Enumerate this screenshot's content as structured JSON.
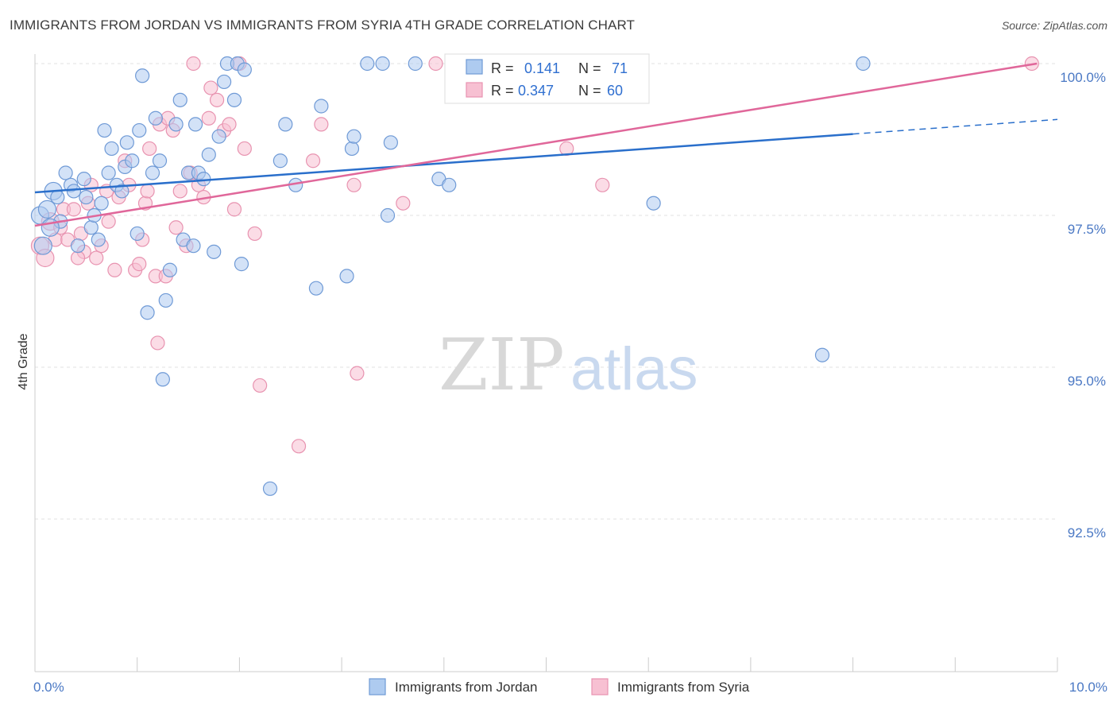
{
  "title": "IMMIGRANTS FROM JORDAN VS IMMIGRANTS FROM SYRIA 4TH GRADE CORRELATION CHART",
  "source": "Source: ZipAtlas.com",
  "watermark": {
    "zip": "ZIP",
    "atlas": "atlas"
  },
  "colors": {
    "jordan_fill": "#aecbf0",
    "jordan_stroke": "#6f9ad6",
    "jordan_line": "#2a6fcb",
    "syria_fill": "#f7c0d2",
    "syria_stroke": "#e893b0",
    "syria_line": "#e0679a"
  },
  "legend": {
    "jordan": {
      "r_label": "R =",
      "r_value": "0.141",
      "n_label": "N =",
      "n_value": "71"
    },
    "syria": {
      "r_label": "R =",
      "r_value": "0.347",
      "n_label": "N =",
      "n_value": "60"
    }
  },
  "chart_data": {
    "type": "scatter",
    "title": "IMMIGRANTS FROM JORDAN VS IMMIGRANTS FROM SYRIA 4TH GRADE CORRELATION CHART",
    "xlabel": "",
    "ylabel": "4th Grade",
    "xlim": [
      0,
      10
    ],
    "ylim": [
      90.0,
      100.3
    ],
    "x_tick_labels": [
      "0.0%",
      "10.0%"
    ],
    "y_ticks": [
      92.5,
      95.0,
      97.5,
      100.0
    ],
    "y_tick_labels": [
      "92.5%",
      "95.0%",
      "97.5%",
      "100.0%"
    ],
    "grid": true,
    "legend_position": "bottom",
    "series": [
      {
        "name": "Immigrants from Jordan",
        "trend": {
          "x0": 0.0,
          "y0": 97.88,
          "x1": 8.0,
          "y1": 98.84,
          "dash_x1": 10.0,
          "dash_y1": 99.08
        },
        "points": [
          [
            0.05,
            97.5
          ],
          [
            0.12,
            97.6
          ],
          [
            0.18,
            97.9
          ],
          [
            0.25,
            97.4
          ],
          [
            0.3,
            98.2
          ],
          [
            0.35,
            98.0
          ],
          [
            0.38,
            97.9
          ],
          [
            0.42,
            97.0
          ],
          [
            0.48,
            98.1
          ],
          [
            0.5,
            97.8
          ],
          [
            0.55,
            97.3
          ],
          [
            0.58,
            97.5
          ],
          [
            0.62,
            97.1
          ],
          [
            0.68,
            98.9
          ],
          [
            0.72,
            98.2
          ],
          [
            0.75,
            98.6
          ],
          [
            0.8,
            98.0
          ],
          [
            0.85,
            97.9
          ],
          [
            0.88,
            98.3
          ],
          [
            0.9,
            98.7
          ],
          [
            0.95,
            98.4
          ],
          [
            1.0,
            97.2
          ],
          [
            1.02,
            98.9
          ],
          [
            1.05,
            99.8
          ],
          [
            1.1,
            95.9
          ],
          [
            1.15,
            98.2
          ],
          [
            1.18,
            99.1
          ],
          [
            1.22,
            98.4
          ],
          [
            1.25,
            94.8
          ],
          [
            1.28,
            96.1
          ],
          [
            1.32,
            96.6
          ],
          [
            1.38,
            99.0
          ],
          [
            1.42,
            99.4
          ],
          [
            1.45,
            97.1
          ],
          [
            1.5,
            98.2
          ],
          [
            1.55,
            97.0
          ],
          [
            1.57,
            99.0
          ],
          [
            1.6,
            98.2
          ],
          [
            1.7,
            98.5
          ],
          [
            1.75,
            96.9
          ],
          [
            1.8,
            98.8
          ],
          [
            1.85,
            99.7
          ],
          [
            1.88,
            100.0
          ],
          [
            1.95,
            99.4
          ],
          [
            1.98,
            100.0
          ],
          [
            2.02,
            96.7
          ],
          [
            2.05,
            99.9
          ],
          [
            2.3,
            93.0
          ],
          [
            2.4,
            98.4
          ],
          [
            2.45,
            99.0
          ],
          [
            2.55,
            98.0
          ],
          [
            2.75,
            96.3
          ],
          [
            2.8,
            99.3
          ],
          [
            3.05,
            96.5
          ],
          [
            3.1,
            98.6
          ],
          [
            3.12,
            98.8
          ],
          [
            3.25,
            100.0
          ],
          [
            3.4,
            100.0
          ],
          [
            3.45,
            97.5
          ],
          [
            3.48,
            98.7
          ],
          [
            3.72,
            100.0
          ],
          [
            3.95,
            98.1
          ],
          [
            4.05,
            98.0
          ],
          [
            6.05,
            97.7
          ],
          [
            7.7,
            95.2
          ],
          [
            8.1,
            100.0
          ],
          [
            0.08,
            97.0
          ],
          [
            0.15,
            97.3
          ],
          [
            0.22,
            97.8
          ],
          [
            0.65,
            97.7
          ],
          [
            1.65,
            98.1
          ]
        ],
        "sizes_note": "larger markers near x=0"
      },
      {
        "name": "Immigrants from Syria",
        "trend": {
          "x0": 0.0,
          "y0": 97.33,
          "x1": 9.8,
          "y1": 100.0
        },
        "points": [
          [
            0.05,
            97.0
          ],
          [
            0.1,
            96.8
          ],
          [
            0.15,
            97.4
          ],
          [
            0.2,
            97.1
          ],
          [
            0.28,
            97.6
          ],
          [
            0.32,
            97.1
          ],
          [
            0.38,
            97.6
          ],
          [
            0.45,
            97.2
          ],
          [
            0.48,
            96.9
          ],
          [
            0.52,
            97.7
          ],
          [
            0.55,
            98.0
          ],
          [
            0.6,
            96.8
          ],
          [
            0.65,
            97.0
          ],
          [
            0.7,
            97.9
          ],
          [
            0.72,
            97.4
          ],
          [
            0.78,
            96.6
          ],
          [
            0.82,
            97.8
          ],
          [
            0.88,
            98.4
          ],
          [
            0.92,
            98.0
          ],
          [
            0.98,
            96.6
          ],
          [
            1.02,
            96.7
          ],
          [
            1.05,
            97.1
          ],
          [
            1.08,
            97.7
          ],
          [
            1.12,
            98.6
          ],
          [
            1.18,
            96.5
          ],
          [
            1.2,
            95.4
          ],
          [
            1.22,
            99.0
          ],
          [
            1.28,
            96.5
          ],
          [
            1.3,
            99.1
          ],
          [
            1.35,
            98.9
          ],
          [
            1.38,
            97.3
          ],
          [
            1.42,
            97.9
          ],
          [
            1.48,
            97.0
          ],
          [
            1.52,
            98.2
          ],
          [
            1.55,
            100.0
          ],
          [
            1.6,
            98.0
          ],
          [
            1.65,
            97.8
          ],
          [
            1.7,
            99.1
          ],
          [
            1.72,
            99.6
          ],
          [
            1.78,
            99.4
          ],
          [
            1.85,
            98.9
          ],
          [
            1.9,
            99.0
          ],
          [
            1.95,
            97.6
          ],
          [
            2.0,
            100.0
          ],
          [
            2.05,
            98.6
          ],
          [
            2.15,
            97.2
          ],
          [
            2.2,
            94.7
          ],
          [
            2.58,
            93.7
          ],
          [
            2.72,
            98.4
          ],
          [
            2.8,
            99.0
          ],
          [
            3.12,
            98.0
          ],
          [
            3.15,
            94.9
          ],
          [
            3.6,
            97.7
          ],
          [
            3.92,
            100.0
          ],
          [
            5.2,
            98.6
          ],
          [
            5.55,
            98.0
          ],
          [
            9.75,
            100.0
          ],
          [
            0.25,
            97.3
          ],
          [
            0.42,
            96.8
          ],
          [
            1.1,
            97.9
          ]
        ]
      }
    ]
  },
  "bottom_legend": {
    "jordan": "Immigrants from Jordan",
    "syria": "Immigrants from Syria"
  }
}
